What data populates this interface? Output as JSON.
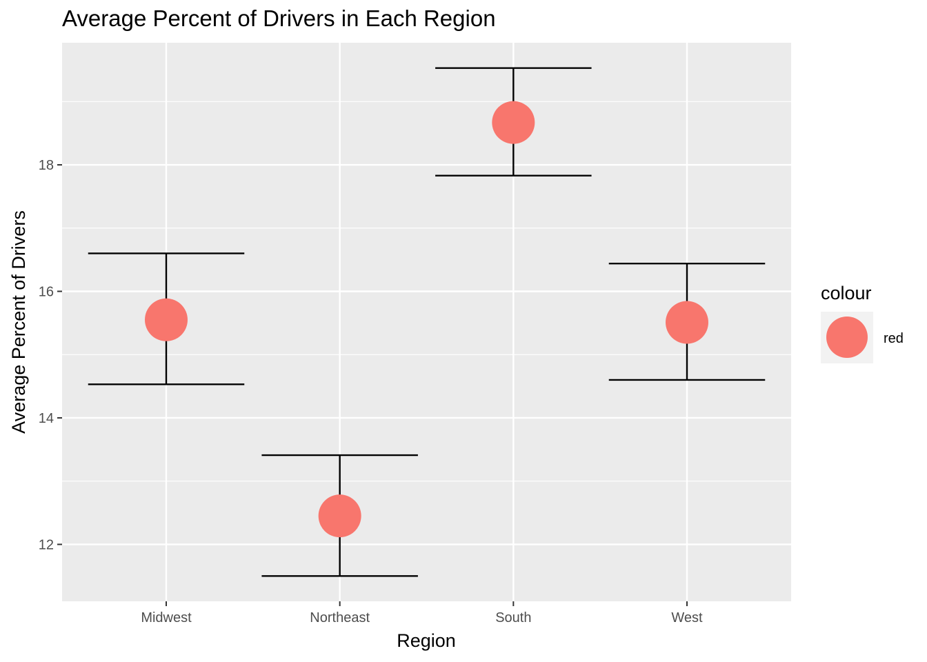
{
  "chart_data": {
    "type": "scatter",
    "title": "Average Percent of Drivers in Each Region",
    "xlabel": "Region",
    "ylabel": "Average Percent of Drivers",
    "categories": [
      "Midwest",
      "Northeast",
      "South",
      "West"
    ],
    "series": [
      {
        "name": "red",
        "values": [
          15.55,
          12.45,
          18.67,
          15.51
        ],
        "error_low": [
          14.53,
          11.5,
          17.83,
          14.6
        ],
        "error_high": [
          16.6,
          13.41,
          19.53,
          16.44
        ]
      }
    ],
    "ylim": [
      11.1,
      19.93
    ],
    "yticks": [
      12,
      14,
      16,
      18
    ],
    "grid": true,
    "legend": {
      "title": "colour",
      "position": "right",
      "entries": [
        "red"
      ]
    },
    "colors": {
      "point": "#F8766D",
      "errorbar": "#000000",
      "panel": "#EBEBEB",
      "gridline": "#FFFFFF",
      "axis_text": "#4D4D4D"
    }
  }
}
